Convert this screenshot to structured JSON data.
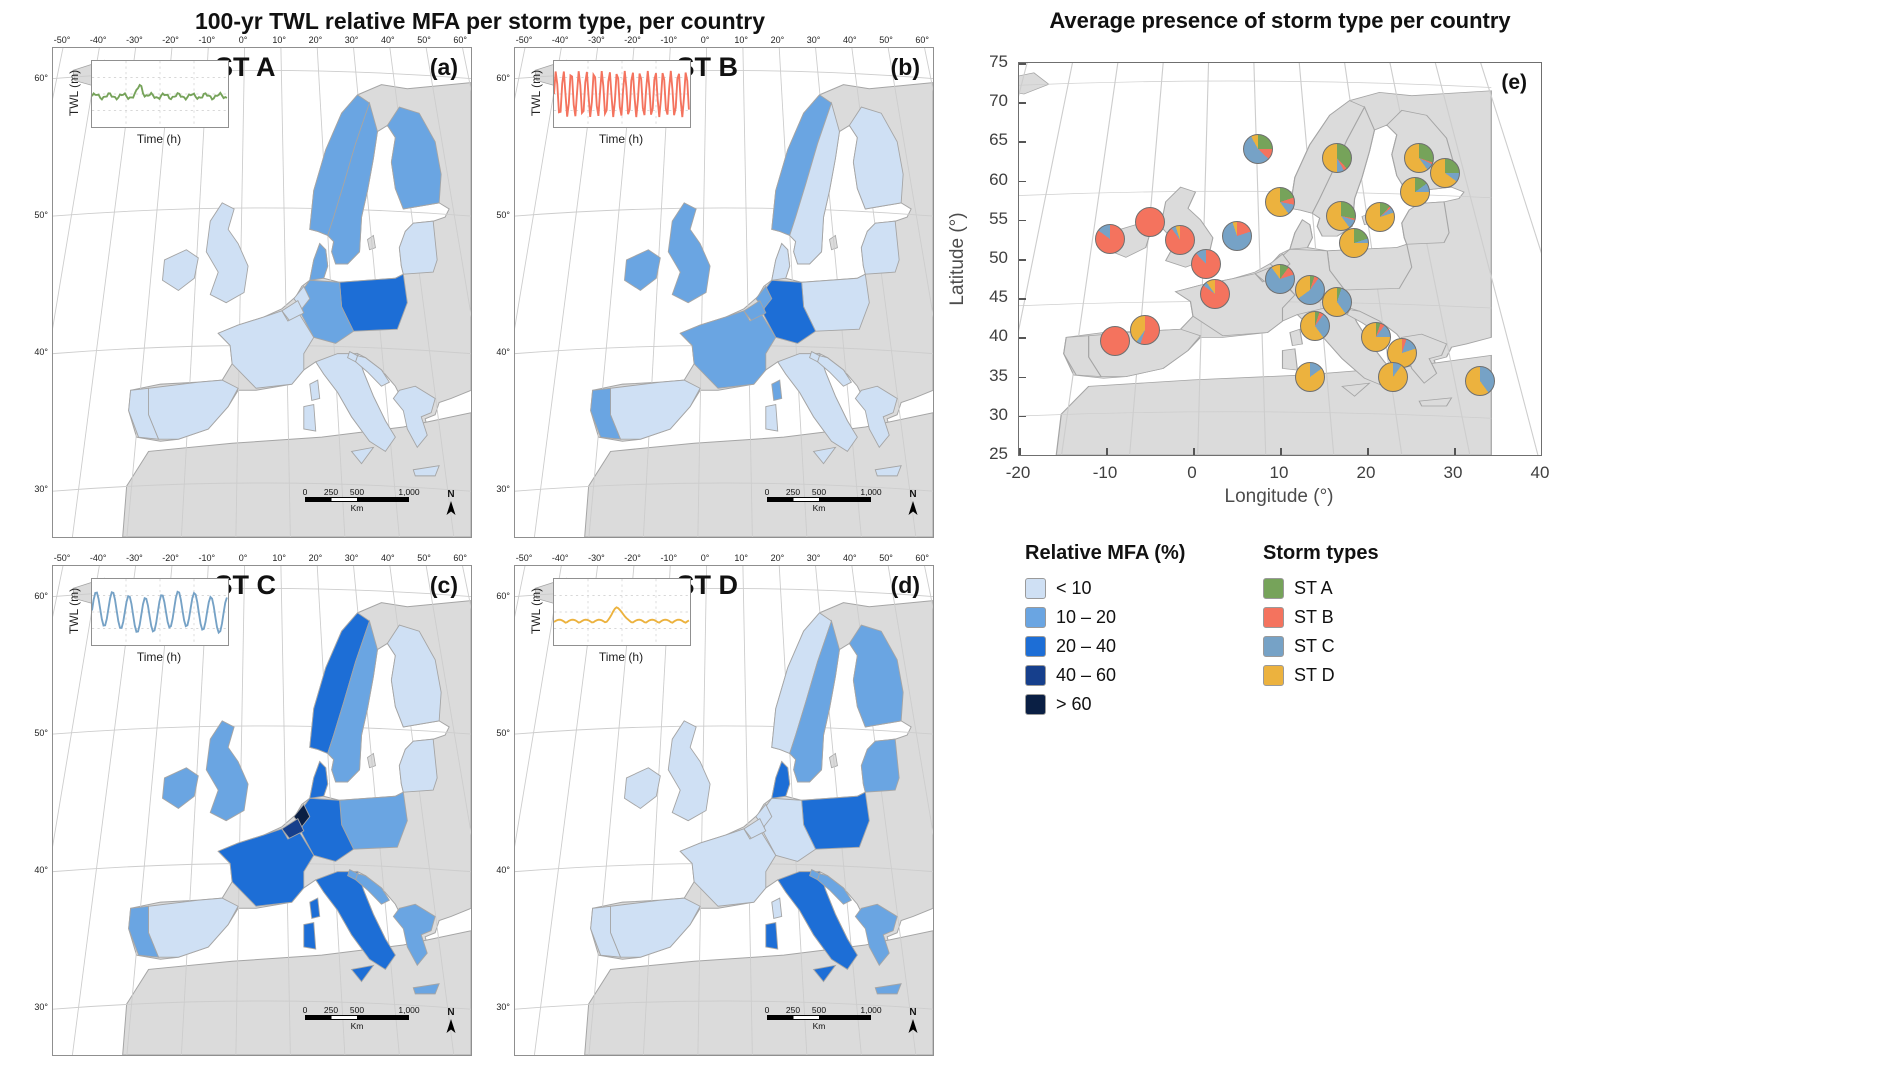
{
  "titles": {
    "left": "100-yr TWL relative MFA per storm type, per country",
    "right": "Average presence of storm type per country"
  },
  "map_style": {
    "land": "#dbdbdb",
    "sea": "#ffffff",
    "border": "#a5a5a5",
    "graticule": "#cdcdcd"
  },
  "panel_axes": {
    "top_ticks": [
      "-50°",
      "-40°",
      "-30°",
      "-20°",
      "-10°",
      "0°",
      "10°",
      "20°",
      "30°",
      "40°",
      "50°",
      "60°"
    ],
    "left_ticks": [
      "60°",
      "50°",
      "40°",
      "30°"
    ]
  },
  "inset": {
    "ylabel": "TWL (m)",
    "xlabel": "Time (h)"
  },
  "scalebar": {
    "labels": [
      "0",
      "250",
      "500",
      "1,000"
    ],
    "unit": "Km",
    "north": "N"
  },
  "panels": [
    {
      "id": "a",
      "letter": "(a)",
      "storm": "ST A",
      "wave": {
        "kind": "flat-peak",
        "color": "#76a35a"
      }
    },
    {
      "id": "b",
      "letter": "(b)",
      "storm": "ST B",
      "wave": {
        "kind": "sine-dense",
        "color": "#f4735e"
      }
    },
    {
      "id": "c",
      "letter": "(c)",
      "storm": "ST C",
      "wave": {
        "kind": "sine",
        "color": "#76a2c6"
      }
    },
    {
      "id": "d",
      "letter": "(d)",
      "storm": "ST D",
      "wave": {
        "kind": "humps",
        "color": "#ecb23e"
      }
    }
  ],
  "panel_e": {
    "letter": "(e)",
    "xlabel": "Longitude (°)",
    "ylabel": "Latitude (°)",
    "x_ticks": [
      -20,
      -10,
      0,
      10,
      20,
      30,
      40
    ],
    "y_ticks": [
      25,
      30,
      35,
      40,
      45,
      50,
      55,
      60,
      65,
      70,
      75
    ],
    "xlim": [
      -20,
      40
    ],
    "ylim": [
      25,
      75
    ]
  },
  "legend": {
    "mfa": {
      "title": "Relative MFA (%)",
      "classes": [
        {
          "label": "< 10",
          "color": "#cfe0f4"
        },
        {
          "label": "10 – 20",
          "color": "#6aa5e2"
        },
        {
          "label": "20 – 40",
          "color": "#1d6ed6"
        },
        {
          "label": "40 – 60",
          "color": "#163f8c"
        },
        {
          "label": "> 60",
          "color": "#0a1f44"
        }
      ]
    },
    "storm": {
      "title": "Storm types",
      "types": [
        {
          "id": "A",
          "label": "ST A",
          "color": "#76a35a"
        },
        {
          "id": "B",
          "label": "ST B",
          "color": "#f4735e"
        },
        {
          "id": "C",
          "label": "ST C",
          "color": "#76a2c6"
        },
        {
          "id": "D",
          "label": "ST D",
          "color": "#ecb23e"
        }
      ]
    }
  },
  "chart_data": [
    {
      "type": "heatmap",
      "subtype": "choropleth-map",
      "panel": "a",
      "title": "100-yr TWL relative MFA, ST A",
      "unit": "Relative MFA (%)",
      "values": {
        "Poland": "20 – 40",
        "Norway": "10 – 20",
        "Sweden": "10 – 20",
        "Finland": "10 – 20",
        "Germany": "10 – 20",
        "Denmark": "10 – 20",
        "Ireland": "< 10",
        "United Kingdom": "< 10",
        "Netherlands": "< 10",
        "Belgium": "< 10",
        "France": "< 10",
        "Spain": "< 10",
        "Portugal": "< 10",
        "Italy": "< 10",
        "Greece": "< 10",
        "Baltic states": "< 10",
        "Croatia": "< 10",
        "Slovenia": "< 10"
      }
    },
    {
      "type": "heatmap",
      "subtype": "choropleth-map",
      "panel": "b",
      "title": "100-yr TWL relative MFA, ST B",
      "unit": "Relative MFA (%)",
      "values": {
        "Germany": "20 – 40",
        "France": "10 – 20",
        "Norway": "10 – 20",
        "United Kingdom": "10 – 20",
        "Ireland": "10 – 20",
        "Portugal": "10 – 20",
        "Netherlands": "10 – 20",
        "Belgium": "10 – 20",
        "Spain": "< 10",
        "Sweden": "< 10",
        "Finland": "< 10",
        "Denmark": "< 10",
        "Poland": "< 10",
        "Italy": "< 10",
        "Greece": "< 10",
        "Baltic states": "< 10",
        "Croatia": "< 10",
        "Slovenia": "< 10"
      }
    },
    {
      "type": "heatmap",
      "subtype": "choropleth-map",
      "panel": "c",
      "title": "100-yr TWL relative MFA, ST C",
      "unit": "Relative MFA (%)",
      "values": {
        "Netherlands": "> 60",
        "Belgium": "40 – 60",
        "Germany": "20 – 40",
        "Norway": "20 – 40",
        "France": "20 – 40",
        "Italy": "20 – 40",
        "Denmark": "20 – 40",
        "United Kingdom": "10 – 20",
        "Ireland": "10 – 20",
        "Sweden": "10 – 20",
        "Portugal": "10 – 20",
        "Greece": "10 – 20",
        "Poland": "10 – 20",
        "Croatia": "10 – 20",
        "Slovenia": "10 – 20",
        "Spain": "< 10",
        "Finland": "< 10",
        "Baltic states": "< 10"
      }
    },
    {
      "type": "heatmap",
      "subtype": "choropleth-map",
      "panel": "d",
      "title": "100-yr TWL relative MFA, ST D",
      "unit": "Relative MFA (%)",
      "values": {
        "Poland": "20 – 40",
        "Italy": "20 – 40",
        "Denmark": "20 – 40",
        "Finland": "10 – 20",
        "Sweden": "10 – 20",
        "Baltic states": "10 – 20",
        "Greece": "10 – 20",
        "Croatia": "10 – 20",
        "Slovenia": "10 – 20",
        "Norway": "< 10",
        "Germany": "< 10",
        "Netherlands": "< 10",
        "Belgium": "< 10",
        "France": "< 10",
        "Spain": "< 10",
        "Portugal": "< 10",
        "United Kingdom": "< 10",
        "Ireland": "< 10"
      }
    },
    {
      "type": "pie",
      "panel": "e",
      "title": "Average presence of storm type per country",
      "xlabel": "Longitude (°)",
      "ylabel": "Latitude (°)",
      "xlim": [
        -20,
        40
      ],
      "ylim": [
        25,
        75
      ],
      "series_colors": {
        "ST A": "#76a35a",
        "ST B": "#f4735e",
        "ST C": "#76a2c6",
        "ST D": "#ecb23e"
      },
      "pies": [
        {
          "lon": -9.5,
          "lat": 52.6,
          "ST A": 0,
          "ST B": 85,
          "ST C": 15,
          "ST D": 0
        },
        {
          "lon": -5.0,
          "lat": 54.7,
          "ST A": 0,
          "ST B": 100,
          "ST C": 0,
          "ST D": 0
        },
        {
          "lon": -1.5,
          "lat": 52.4,
          "ST A": 0,
          "ST B": 90,
          "ST C": 5,
          "ST D": 5
        },
        {
          "lon": 1.5,
          "lat": 49.3,
          "ST A": 0,
          "ST B": 88,
          "ST C": 12,
          "ST D": 0
        },
        {
          "lon": 2.5,
          "lat": 45.5,
          "ST A": 0,
          "ST B": 85,
          "ST C": 5,
          "ST D": 10
        },
        {
          "lon": -9.0,
          "lat": 39.5,
          "ST A": 0,
          "ST B": 100,
          "ST C": 0,
          "ST D": 0
        },
        {
          "lon": -5.5,
          "lat": 41.0,
          "ST A": 0,
          "ST B": 55,
          "ST C": 5,
          "ST D": 40
        },
        {
          "lon": 5.0,
          "lat": 52.9,
          "ST A": 0,
          "ST B": 20,
          "ST C": 75,
          "ST D": 5
        },
        {
          "lon": 7.5,
          "lat": 64.0,
          "ST A": 25,
          "ST B": 12,
          "ST C": 55,
          "ST D": 8
        },
        {
          "lon": 16.5,
          "lat": 62.9,
          "ST A": 38,
          "ST B": 4,
          "ST C": 8,
          "ST D": 50
        },
        {
          "lon": 26.0,
          "lat": 62.9,
          "ST A": 30,
          "ST B": 2,
          "ST C": 8,
          "ST D": 60
        },
        {
          "lon": 10.0,
          "lat": 57.3,
          "ST A": 20,
          "ST B": 8,
          "ST C": 12,
          "ST D": 60
        },
        {
          "lon": 17.0,
          "lat": 55.5,
          "ST A": 28,
          "ST B": 2,
          "ST C": 10,
          "ST D": 60
        },
        {
          "lon": 21.5,
          "lat": 55.3,
          "ST A": 12,
          "ST B": 2,
          "ST C": 6,
          "ST D": 80
        },
        {
          "lon": 29.0,
          "lat": 61.0,
          "ST A": 25,
          "ST B": 0,
          "ST C": 10,
          "ST D": 65
        },
        {
          "lon": 25.5,
          "lat": 58.5,
          "ST A": 15,
          "ST B": 0,
          "ST C": 10,
          "ST D": 75
        },
        {
          "lon": 18.5,
          "lat": 52.0,
          "ST A": 20,
          "ST B": 0,
          "ST C": 5,
          "ST D": 75
        },
        {
          "lon": 10.0,
          "lat": 47.5,
          "ST A": 10,
          "ST B": 10,
          "ST C": 70,
          "ST D": 10
        },
        {
          "lon": 13.5,
          "lat": 46.0,
          "ST A": 5,
          "ST B": 5,
          "ST C": 55,
          "ST D": 35
        },
        {
          "lon": 16.5,
          "lat": 44.5,
          "ST A": 5,
          "ST B": 0,
          "ST C": 35,
          "ST D": 60
        },
        {
          "lon": 14.0,
          "lat": 41.5,
          "ST A": 5,
          "ST B": 5,
          "ST C": 30,
          "ST D": 60
        },
        {
          "lon": 21.0,
          "lat": 40.0,
          "ST A": 5,
          "ST B": 5,
          "ST C": 15,
          "ST D": 75
        },
        {
          "lon": 24.0,
          "lat": 38.0,
          "ST A": 0,
          "ST B": 5,
          "ST C": 15,
          "ST D": 80
        },
        {
          "lon": 13.5,
          "lat": 35.0,
          "ST A": 0,
          "ST B": 0,
          "ST C": 15,
          "ST D": 85
        },
        {
          "lon": 23.0,
          "lat": 35.0,
          "ST A": 0,
          "ST B": 0,
          "ST C": 10,
          "ST D": 90
        },
        {
          "lon": 33.0,
          "lat": 34.5,
          "ST A": 0,
          "ST B": 0,
          "ST C": 40,
          "ST D": 60
        }
      ]
    }
  ]
}
